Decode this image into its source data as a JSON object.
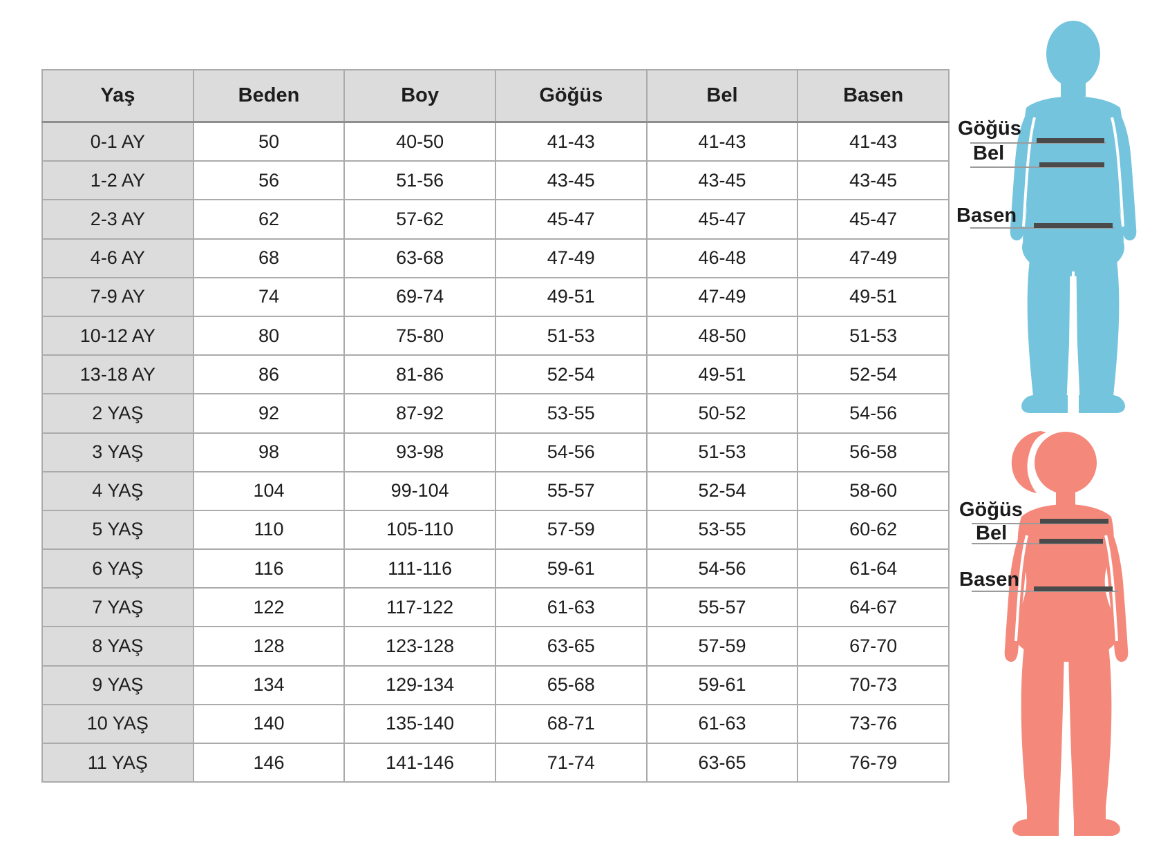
{
  "table": {
    "columns": [
      "Yaş",
      "Beden",
      "Boy",
      "Göğüs",
      "Bel",
      "Basen"
    ],
    "rows": [
      [
        "0-1 AY",
        "50",
        "40-50",
        "41-43",
        "41-43",
        "41-43"
      ],
      [
        "1-2 AY",
        "56",
        "51-56",
        "43-45",
        "43-45",
        "43-45"
      ],
      [
        "2-3 AY",
        "62",
        "57-62",
        "45-47",
        "45-47",
        "45-47"
      ],
      [
        "4-6 AY",
        "68",
        "63-68",
        "47-49",
        "46-48",
        "47-49"
      ],
      [
        "7-9 AY",
        "74",
        "69-74",
        "49-51",
        "47-49",
        "49-51"
      ],
      [
        "10-12 AY",
        "80",
        "75-80",
        "51-53",
        "48-50",
        "51-53"
      ],
      [
        "13-18 AY",
        "86",
        "81-86",
        "52-54",
        "49-51",
        "52-54"
      ],
      [
        "2 YAŞ",
        "92",
        "87-92",
        "53-55",
        "50-52",
        "54-56"
      ],
      [
        "3 YAŞ",
        "98",
        "93-98",
        "54-56",
        "51-53",
        "56-58"
      ],
      [
        "4 YAŞ",
        "104",
        "99-104",
        "55-57",
        "52-54",
        "58-60"
      ],
      [
        "5 YAŞ",
        "110",
        "105-110",
        "57-59",
        "53-55",
        "60-62"
      ],
      [
        "6 YAŞ",
        "116",
        "111-116",
        "59-61",
        "54-56",
        "61-64"
      ],
      [
        "7 YAŞ",
        "122",
        "117-122",
        "61-63",
        "55-57",
        "64-67"
      ],
      [
        "8 YAŞ",
        "128",
        "123-128",
        "63-65",
        "57-59",
        "67-70"
      ],
      [
        "9 YAŞ",
        "134",
        "129-134",
        "65-68",
        "59-61",
        "70-73"
      ],
      [
        "10 YAŞ",
        "140",
        "135-140",
        "68-71",
        "61-63",
        "73-76"
      ],
      [
        "11 YAŞ",
        "146",
        "141-146",
        "71-74",
        "63-65",
        "76-79"
      ]
    ]
  },
  "figures": {
    "boy": {
      "color": "#74C4DE",
      "labels": {
        "chest": "Göğüs",
        "waist": "Bel",
        "hips": "Basen"
      }
    },
    "girl": {
      "color": "#F4897B",
      "labels": {
        "chest": "Göğüs",
        "waist": "Bel",
        "hips": "Basen"
      }
    }
  },
  "colors": {
    "header_bg": "#DCDCDC",
    "row_label_bg": "#DCDCDC",
    "cell_bg": "#FFFFFF",
    "border": "#ABABAB",
    "text": "#1D1D1D",
    "measure_line_thin": "#9B9B9B",
    "measure_band_dark": "#4A4A4A",
    "boy_silhouette": "#74C4DE",
    "girl_silhouette": "#F4897B"
  }
}
